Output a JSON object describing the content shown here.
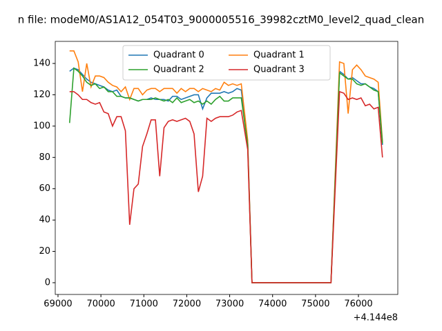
{
  "chart_data": {
    "type": "line",
    "title": "n file: modeM0/AS1A12_054T03_9000005516_39982cztM0_level2_quad_clean",
    "x_offset_label": "+4.144e8",
    "x": [
      69270,
      69370,
      69470,
      69570,
      69670,
      69770,
      69870,
      69970,
      70070,
      70170,
      70270,
      70370,
      70470,
      70570,
      70670,
      70770,
      70870,
      70970,
      71070,
      71170,
      71270,
      71370,
      71470,
      71570,
      71670,
      71770,
      71870,
      71970,
      72070,
      72170,
      72270,
      72370,
      72470,
      72570,
      72670,
      72770,
      72870,
      72970,
      73070,
      73170,
      73270,
      73420,
      73520,
      75360,
      75560,
      75660,
      75760,
      75860,
      75960,
      76060,
      76160,
      76260,
      76360,
      76460,
      76560
    ],
    "series": [
      {
        "name": "Quadrant 0",
        "color": "#1f77b4",
        "values": [
          135,
          137,
          136,
          133,
          130,
          128,
          127,
          126,
          125,
          123,
          122,
          123,
          119,
          118,
          118,
          117,
          116,
          117,
          117,
          118,
          117,
          117,
          117,
          116,
          119,
          119,
          117,
          118,
          119,
          120,
          120,
          111,
          118,
          121,
          121,
          121,
          122,
          121,
          122,
          124,
          123,
          90,
          0,
          0,
          135,
          133,
          130,
          131,
          129,
          127,
          127,
          125,
          124,
          122,
          88
        ]
      },
      {
        "name": "Quadrant 1",
        "color": "#ff7f0e",
        "values": [
          148,
          148,
          141,
          122,
          140,
          125,
          132,
          132,
          131,
          128,
          126,
          125,
          122,
          125,
          117,
          124,
          124,
          120,
          123,
          124,
          124,
          122,
          124,
          124,
          124,
          121,
          124,
          122,
          124,
          124,
          122,
          124,
          123,
          122,
          124,
          123,
          128,
          126,
          127,
          126,
          127,
          91,
          0,
          0,
          141,
          140,
          108,
          136,
          139,
          136,
          132,
          131,
          130,
          128,
          90
        ]
      },
      {
        "name": "Quadrant 2",
        "color": "#2ca02c",
        "values": [
          102,
          137,
          135,
          132,
          128,
          126,
          127,
          124,
          125,
          122,
          122,
          119,
          119,
          118,
          118,
          117,
          116,
          117,
          117,
          117,
          118,
          117,
          116,
          117,
          115,
          118,
          115,
          116,
          117,
          115,
          116,
          114,
          116,
          114,
          117,
          119,
          116,
          116,
          118,
          118,
          118,
          88,
          0,
          0,
          134,
          132,
          130,
          130,
          127,
          126,
          127,
          125,
          123,
          122,
          89
        ]
      },
      {
        "name": "Quadrant 3",
        "color": "#d62728",
        "values": [
          122,
          122,
          120,
          117,
          117,
          115,
          114,
          115,
          109,
          108,
          100,
          106,
          106,
          97,
          37,
          60,
          63,
          87,
          95,
          104,
          104,
          68,
          99,
          103,
          104,
          103,
          104,
          105,
          103,
          95,
          58,
          68,
          105,
          103,
          105,
          106,
          106,
          106,
          107,
          109,
          110,
          85,
          0,
          0,
          122,
          121,
          117,
          118,
          117,
          118,
          113,
          114,
          111,
          112,
          80
        ]
      }
    ],
    "xlim": [
      68936,
      76917
    ],
    "ylim": [
      -7.5,
      154.1
    ],
    "xticks": [
      69000,
      70000,
      71000,
      72000,
      73000,
      74000,
      75000,
      76000
    ],
    "yticks": [
      0,
      20,
      40,
      60,
      80,
      100,
      120,
      140
    ],
    "legend": "upper center",
    "legend_columns": 2
  }
}
